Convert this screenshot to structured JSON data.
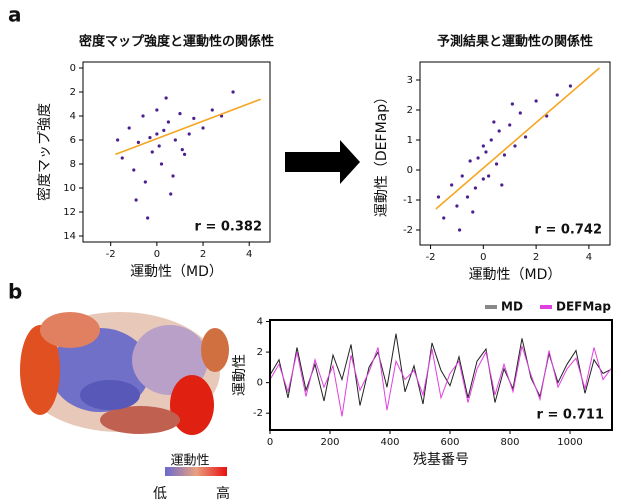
{
  "panels": [
    "a",
    "b"
  ],
  "protein_panel": {
    "colorbar_label": "運動性",
    "low": "低",
    "high": "高"
  },
  "chart_data": [
    {
      "type": "scatter",
      "title": "密度マップ強度と運動性の関係性",
      "x_label": "運動性（MD）",
      "y_label": "密度マップ強度",
      "color": "#4b1f8f",
      "annotation": "r = 0.382",
      "x": [
        -1.5,
        -1.2,
        -1.0,
        -0.8,
        -0.6,
        -0.5,
        -0.3,
        -0.2,
        0,
        0.1,
        0.2,
        0.3,
        0.5,
        0.6,
        0.8,
        1.0,
        1.2,
        1.4,
        1.6,
        2.0,
        2.4,
        2.8,
        3.3,
        -0.9,
        -0.4,
        0.4,
        0.7,
        1.1,
        -1.7,
        0.0
      ],
      "values": [
        7.5,
        5.0,
        8.5,
        6.2,
        4.0,
        9.5,
        5.8,
        7.0,
        3.5,
        6.5,
        8.0,
        5.2,
        4.5,
        10.5,
        6.0,
        3.8,
        7.2,
        5.5,
        4.2,
        5.0,
        3.5,
        4.0,
        2.0,
        11.0,
        12.5,
        2.5,
        9.0,
        6.8,
        6.0,
        5.5
      ],
      "fit": {
        "color": "#f5a623",
        "x": [
          -1.8,
          4.5
        ],
        "y": [
          7.2,
          2.6
        ]
      },
      "xlim": [
        -3.2,
        4.9
      ],
      "xticks": [
        -2,
        0,
        2,
        4
      ],
      "ylim": [
        14.5,
        -0.5
      ],
      "yticks": [
        0,
        2,
        4,
        6,
        8,
        10,
        12,
        14
      ]
    },
    {
      "type": "scatter",
      "title": "予測結果と運動性の関係性",
      "x_label": "運動性（MD）",
      "y_label": "運動性（DEFMap）",
      "color": "#4b1f8f",
      "annotation": "r = 0.742",
      "x": [
        -1.5,
        -1.2,
        -1.0,
        -0.8,
        -0.6,
        -0.5,
        -0.3,
        -0.2,
        0,
        0.1,
        0.2,
        0.3,
        0.5,
        0.6,
        0.8,
        1.0,
        1.2,
        1.4,
        1.6,
        2.0,
        2.4,
        2.8,
        3.3,
        -0.9,
        -0.4,
        0.4,
        0.7,
        1.1,
        -1.7,
        0.0
      ],
      "values": [
        -1.6,
        -0.5,
        -1.2,
        -0.2,
        -0.9,
        0.3,
        -0.6,
        0.4,
        -0.3,
        0.6,
        -0.2,
        1.0,
        0.2,
        1.3,
        0.5,
        1.5,
        0.8,
        1.9,
        1.1,
        2.3,
        1.8,
        2.5,
        2.8,
        -2.0,
        -1.4,
        1.6,
        -0.5,
        2.2,
        -0.9,
        0.8
      ],
      "fit": {
        "color": "#f5a623",
        "x": [
          -1.8,
          4.4
        ],
        "y": [
          -1.3,
          3.4
        ]
      },
      "xlim": [
        -2.4,
        4.8
      ],
      "xticks": [
        -2,
        0,
        2,
        4
      ],
      "ylim": [
        -2.5,
        3.6
      ],
      "yticks": [
        -2,
        -1,
        0,
        1,
        2,
        3
      ]
    },
    {
      "type": "line",
      "x_label": "残基番号",
      "y_label": "運動性",
      "annotation": "r = 0.711",
      "x": [
        0,
        30,
        60,
        90,
        120,
        150,
        180,
        210,
        240,
        270,
        300,
        330,
        360,
        390,
        420,
        450,
        480,
        510,
        540,
        570,
        600,
        630,
        660,
        690,
        720,
        750,
        780,
        810,
        840,
        870,
        900,
        930,
        960,
        990,
        1020,
        1050,
        1080,
        1110,
        1140
      ],
      "series": [
        {
          "name": "MD",
          "color": "#222222",
          "values": [
            0.5,
            1.5,
            -1.0,
            2.3,
            -0.5,
            1.2,
            -1.2,
            1.8,
            0.2,
            2.5,
            -1.5,
            1.0,
            2.0,
            -0.3,
            3.2,
            -0.6,
            1.1,
            -1.4,
            2.6,
            0.8,
            -0.2,
            1.7,
            -1.0,
            1.4,
            2.2,
            -1.3,
            0.9,
            -0.4,
            2.9,
            0.3,
            -0.9,
            1.9,
            0.0,
            1.2,
            2.1,
            -0.7,
            1.5,
            0.6,
            0.9
          ]
        },
        {
          "name": "DEFMap",
          "color": "#e040e0",
          "values": [
            0.2,
            1.2,
            -0.6,
            2.0,
            -0.9,
            1.5,
            -0.3,
            1.1,
            -2.2,
            1.8,
            -0.5,
            0.7,
            2.3,
            -1.8,
            1.4,
            0.2,
            0.8,
            -0.8,
            2.2,
            -1.0,
            0.6,
            1.4,
            -1.3,
            0.9,
            2.0,
            -0.8,
            1.2,
            -0.6,
            2.4,
            0.5,
            -1.1,
            2.1,
            -0.3,
            0.9,
            1.6,
            -0.4,
            2.3,
            0.2,
            1.0
          ]
        }
      ],
      "legend_colors": [
        "#888888",
        "#e040e0"
      ],
      "xlim": [
        0,
        1140
      ],
      "xticks": [
        0,
        200,
        400,
        600,
        800,
        1000
      ],
      "ylim": [
        -3.1,
        4.1
      ],
      "yticks": [
        -2,
        0,
        2,
        4
      ]
    }
  ]
}
